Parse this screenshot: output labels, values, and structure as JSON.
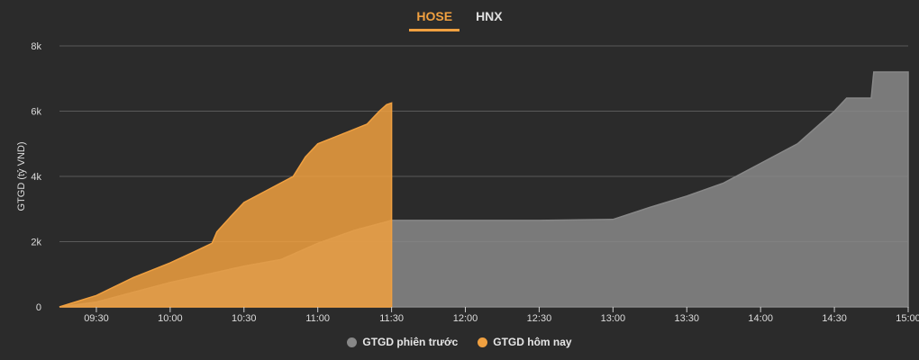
{
  "tabs": [
    {
      "label": "HOSE",
      "active": true
    },
    {
      "label": "HNX",
      "active": false
    }
  ],
  "colors": {
    "background": "#2b2b2b",
    "today": "#f0a040",
    "previous": "#888888",
    "grid": "#5a5a5a"
  },
  "chart_data": {
    "type": "area",
    "ylabel": "GTGD (tỷ VND)",
    "ylim": [
      0,
      8000
    ],
    "yticks": [
      {
        "value": 0,
        "label": "0"
      },
      {
        "value": 2000,
        "label": "2k"
      },
      {
        "value": 4000,
        "label": "4k"
      },
      {
        "value": 6000,
        "label": "6k"
      },
      {
        "value": 8000,
        "label": "8k"
      }
    ],
    "xlim": [
      "09:15",
      "15:00"
    ],
    "xticks": [
      "09:30",
      "10:00",
      "10:30",
      "11:00",
      "11:30",
      "12:00",
      "12:30",
      "13:00",
      "13:30",
      "14:00",
      "14:30",
      "15:00"
    ],
    "grid": true,
    "legend_position": "bottom-center",
    "series": [
      {
        "name": "GTGD phiên trước",
        "color": "#888888",
        "points": [
          [
            "09:15",
            0
          ],
          [
            "09:30",
            150
          ],
          [
            "09:45",
            450
          ],
          [
            "10:00",
            750
          ],
          [
            "10:15",
            1000
          ],
          [
            "10:30",
            1250
          ],
          [
            "10:45",
            1450
          ],
          [
            "11:00",
            1950
          ],
          [
            "11:15",
            2350
          ],
          [
            "11:30",
            2650
          ],
          [
            "12:00",
            2650
          ],
          [
            "12:30",
            2650
          ],
          [
            "13:00",
            2680
          ],
          [
            "13:15",
            3050
          ],
          [
            "13:30",
            3400
          ],
          [
            "13:45",
            3800
          ],
          [
            "14:00",
            4400
          ],
          [
            "14:15",
            5000
          ],
          [
            "14:30",
            6000
          ],
          [
            "14:35",
            6400
          ],
          [
            "14:45",
            6400
          ],
          [
            "14:46",
            7200
          ],
          [
            "15:00",
            7200
          ]
        ]
      },
      {
        "name": "GTGD hôm nay",
        "color": "#f0a040",
        "points": [
          [
            "09:15",
            0
          ],
          [
            "09:30",
            350
          ],
          [
            "09:45",
            900
          ],
          [
            "10:00",
            1350
          ],
          [
            "10:10",
            1700
          ],
          [
            "10:17",
            1950
          ],
          [
            "10:19",
            2300
          ],
          [
            "10:25",
            2800
          ],
          [
            "10:30",
            3200
          ],
          [
            "10:40",
            3600
          ],
          [
            "10:50",
            4000
          ],
          [
            "10:55",
            4600
          ],
          [
            "11:00",
            5000
          ],
          [
            "11:10",
            5300
          ],
          [
            "11:20",
            5600
          ],
          [
            "11:25",
            6000
          ],
          [
            "11:28",
            6200
          ],
          [
            "11:30",
            6250
          ]
        ]
      }
    ]
  }
}
